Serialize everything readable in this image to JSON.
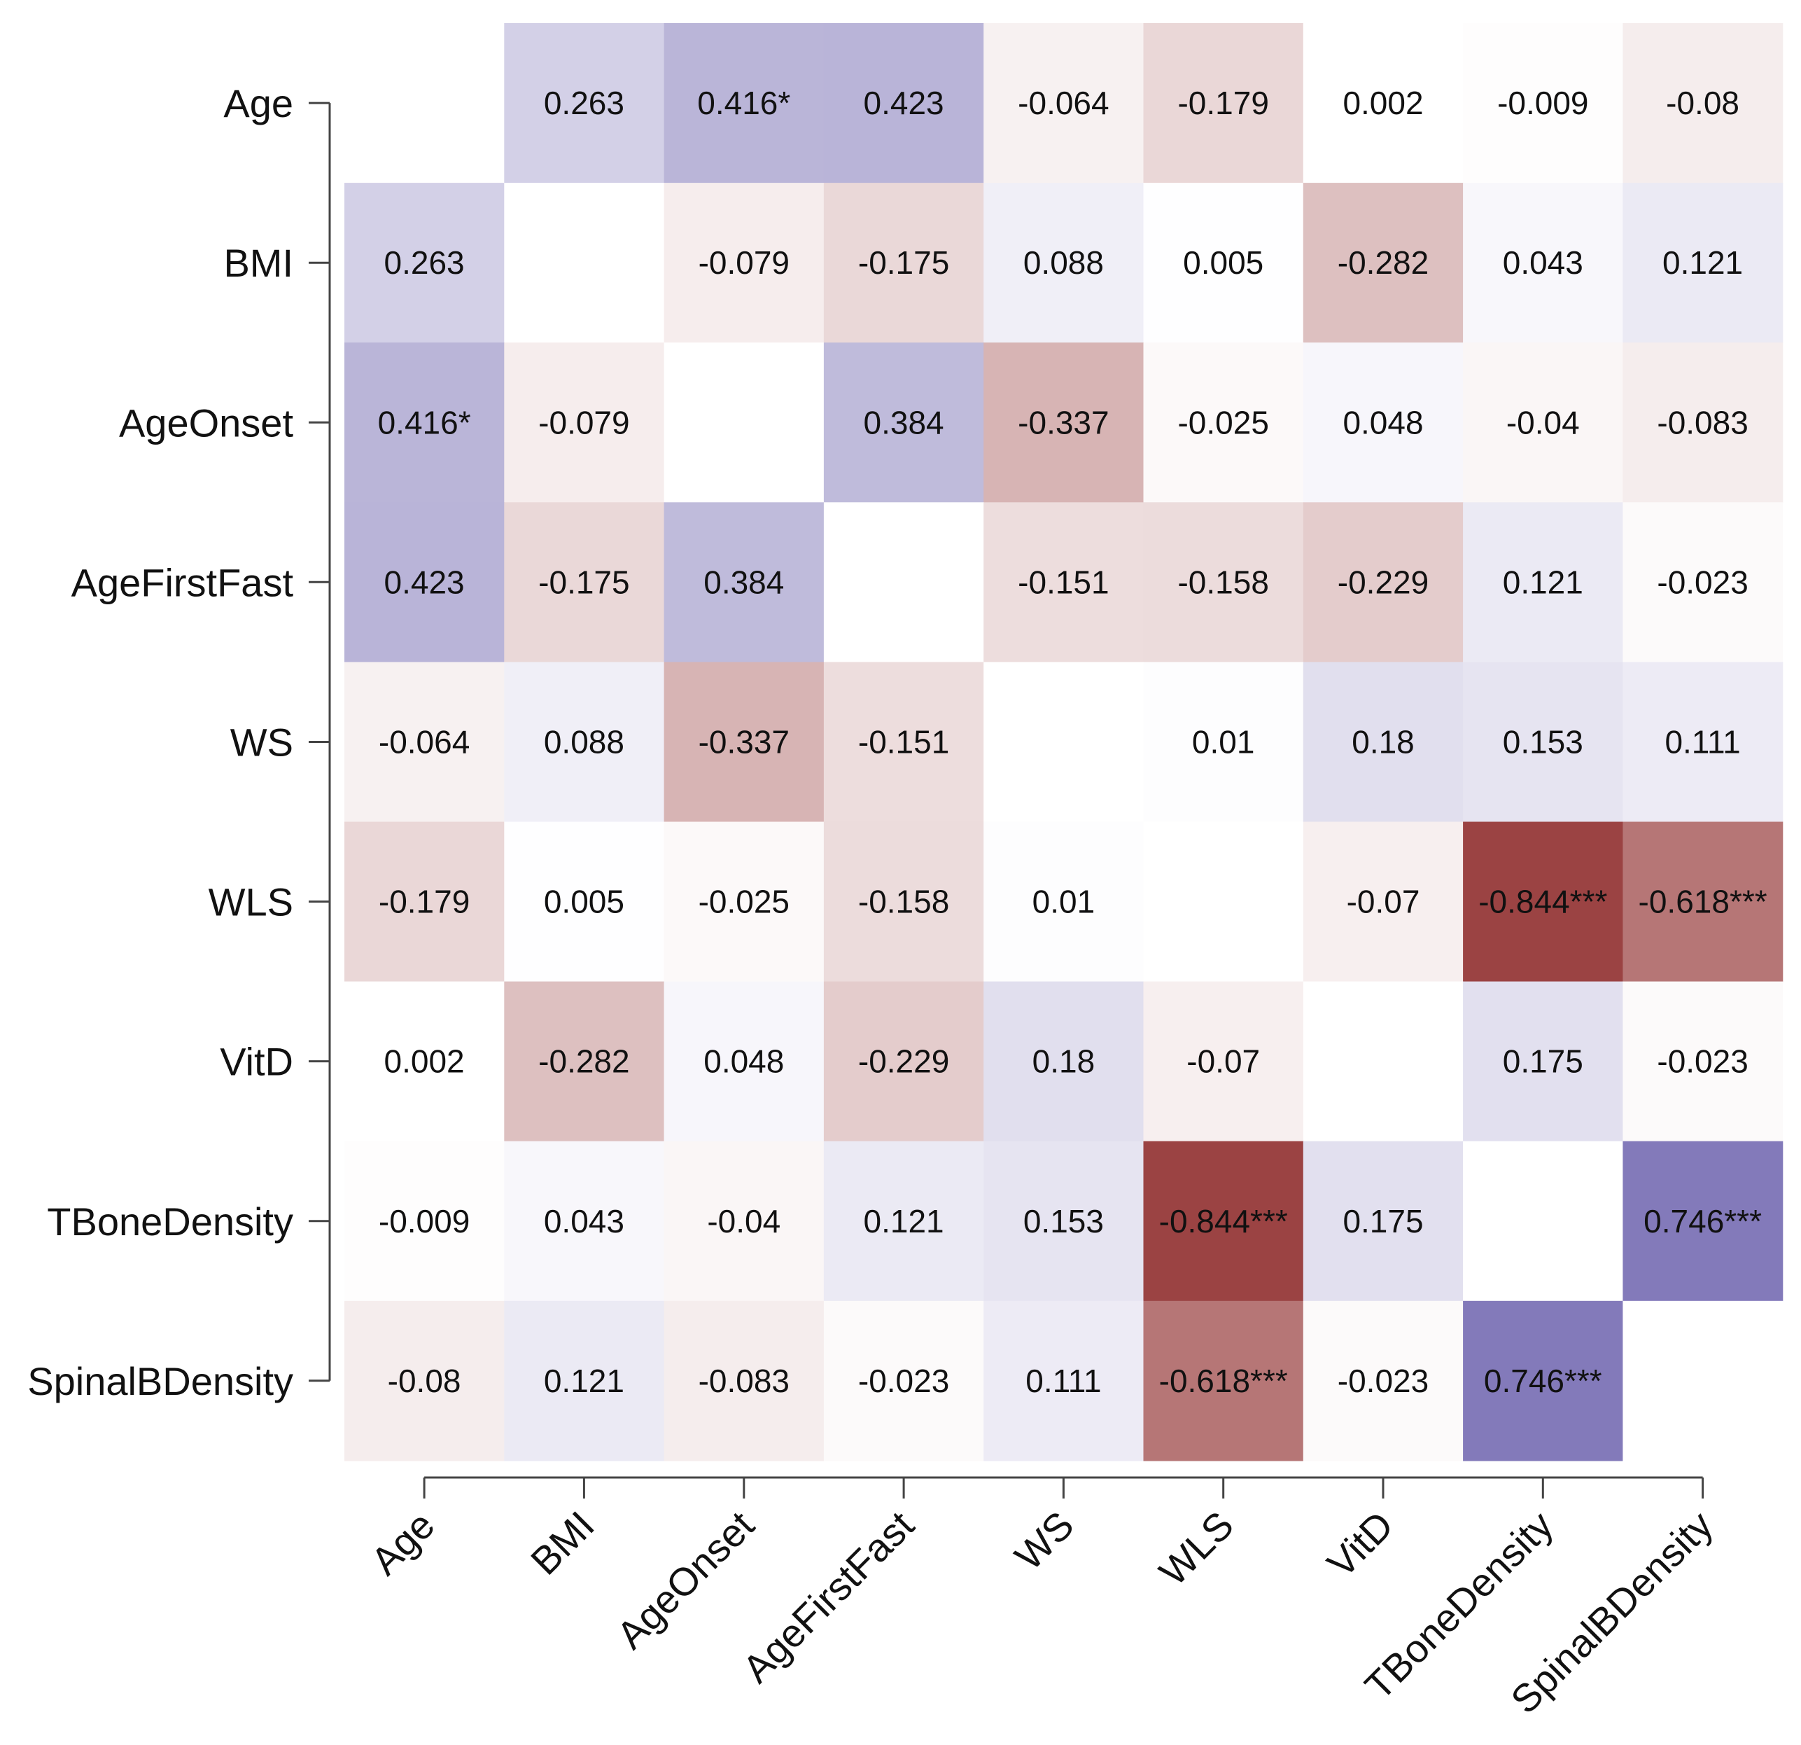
{
  "chart_data": {
    "type": "heatmap",
    "title": "",
    "xlabel": "",
    "ylabel": "",
    "colors": {
      "negative": "#9a4242",
      "neutral": "#ffffff",
      "positive": "#7268b0"
    },
    "variables": [
      "Age",
      "BMI",
      "AgeOnset",
      "AgeFirstFast",
      "WS",
      "WLS",
      "VitD",
      "TBoneDensity",
      "SpinalBDensity"
    ],
    "values": [
      [
        null,
        0.263,
        0.416,
        0.423,
        -0.064,
        -0.179,
        0.002,
        -0.009,
        -0.08
      ],
      [
        0.263,
        null,
        -0.079,
        -0.175,
        0.088,
        0.005,
        -0.282,
        0.043,
        0.121
      ],
      [
        0.416,
        -0.079,
        null,
        0.384,
        -0.337,
        -0.025,
        0.048,
        -0.04,
        -0.083
      ],
      [
        0.423,
        -0.175,
        0.384,
        null,
        -0.151,
        -0.158,
        -0.229,
        0.121,
        -0.023
      ],
      [
        -0.064,
        0.088,
        -0.337,
        -0.151,
        null,
        0.01,
        0.18,
        0.153,
        0.111
      ],
      [
        -0.179,
        0.005,
        -0.025,
        -0.158,
        0.01,
        null,
        -0.07,
        -0.844,
        -0.618
      ],
      [
        0.002,
        -0.282,
        0.048,
        -0.229,
        0.18,
        -0.07,
        null,
        0.175,
        -0.023
      ],
      [
        -0.009,
        0.043,
        -0.04,
        0.121,
        0.153,
        -0.844,
        0.175,
        null,
        0.746
      ],
      [
        -0.08,
        0.121,
        -0.083,
        -0.023,
        0.111,
        -0.618,
        -0.023,
        0.746,
        null
      ]
    ],
    "labels": [
      [
        "",
        "0.263",
        "0.416*",
        "0.423",
        "-0.064",
        "-0.179",
        "0.002",
        "-0.009",
        "-0.08"
      ],
      [
        "0.263",
        "",
        "-0.079",
        "-0.175",
        "0.088",
        "0.005",
        "-0.282",
        "0.043",
        "0.121"
      ],
      [
        "0.416*",
        "-0.079",
        "",
        "0.384",
        "-0.337",
        "-0.025",
        "0.048",
        "-0.04",
        "-0.083"
      ],
      [
        "0.423",
        "-0.175",
        "0.384",
        "",
        "-0.151",
        "-0.158",
        "-0.229",
        "0.121",
        "-0.023"
      ],
      [
        "-0.064",
        "0.088",
        "-0.337",
        "-0.151",
        "",
        "0.01",
        "0.18",
        "0.153",
        "0.111"
      ],
      [
        "-0.179",
        "0.005",
        "-0.025",
        "-0.158",
        "0.01",
        "",
        "-0.07",
        "-0.844***",
        "-0.618***"
      ],
      [
        "0.002",
        "-0.282",
        "0.048",
        "-0.229",
        "0.18",
        "-0.07",
        "",
        "0.175",
        "-0.023"
      ],
      [
        "-0.009",
        "0.043",
        "-0.04",
        "0.121",
        "0.153",
        "-0.844***",
        "0.175",
        "",
        "0.746***"
      ],
      [
        "-0.08",
        "0.121",
        "-0.083",
        "-0.023",
        "0.111",
        "-0.618***",
        "-0.023",
        "0.746***",
        ""
      ]
    ]
  }
}
